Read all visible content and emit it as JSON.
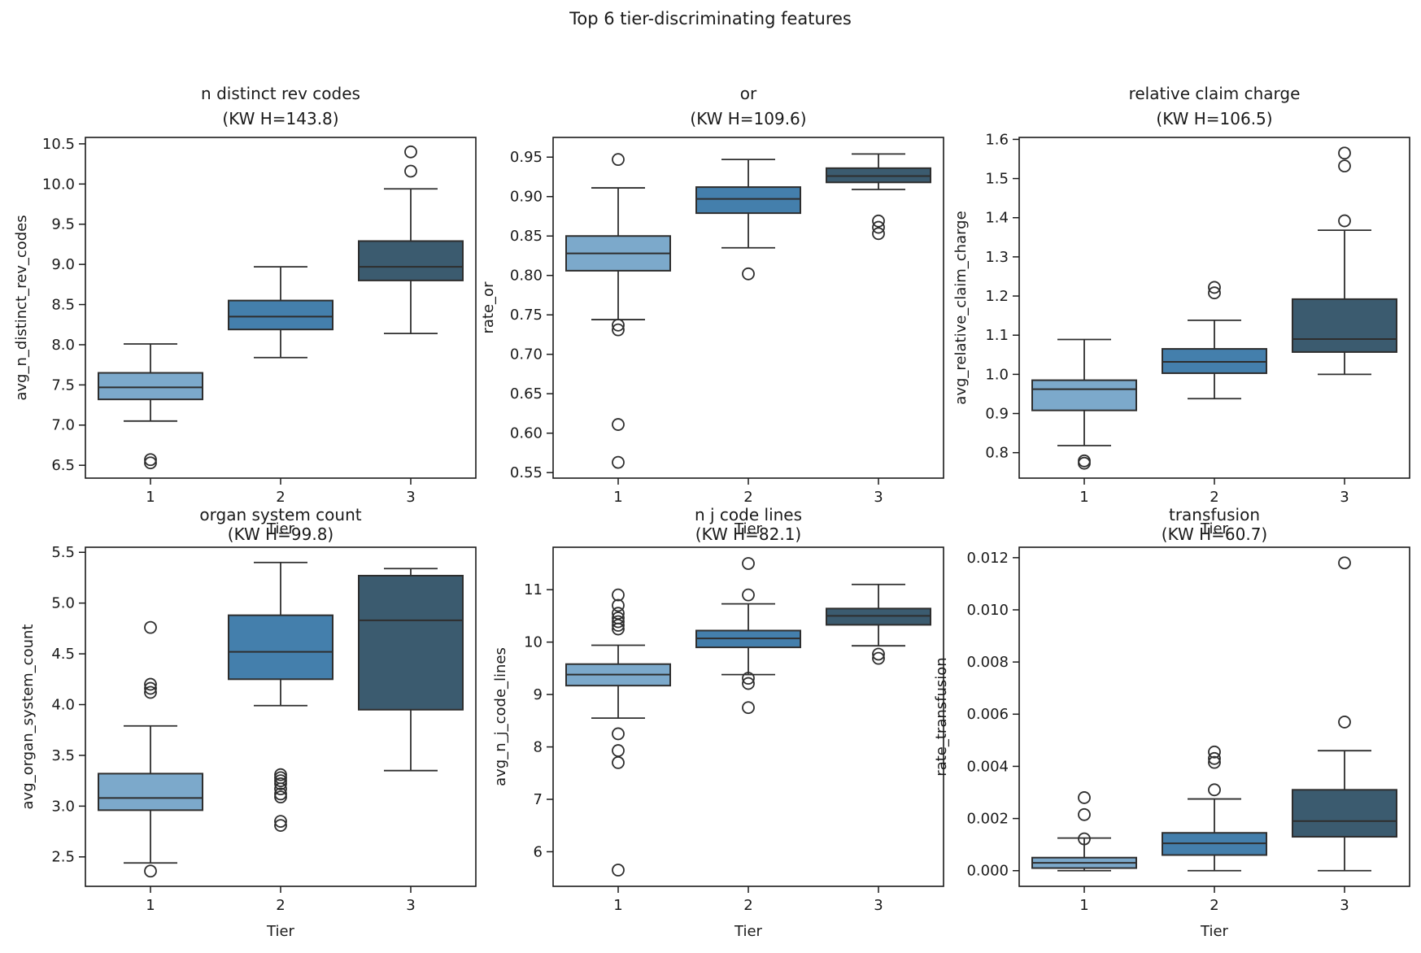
{
  "figure": {
    "suptitle": "Top 6 tier-discriminating features"
  },
  "palette": {
    "tier1_fill": "#7CA9CB",
    "tier2_fill": "#447FAC",
    "tier3_fill": "#3B5B6F",
    "box_line": "#2e2e2e",
    "spine": "#1b1b1b",
    "text": "#1a1a1a",
    "background": "#ffffff"
  },
  "chart_data": [
    {
      "type": "box",
      "title_line1": "n distinct rev codes",
      "title_line2": "(KW H=143.8)",
      "kw_h": 143.8,
      "xlabel": "Tier",
      "ylabel": "avg_n_distinct_rev_codes",
      "categories": [
        "1",
        "2",
        "3"
      ],
      "ylim": [
        6.34,
        10.58
      ],
      "ytick_values": [
        6.5,
        7.0,
        7.5,
        8.0,
        8.5,
        9.0,
        9.5,
        10.0,
        10.5
      ],
      "ytick_labels": [
        "6.5",
        "7.0",
        "7.5",
        "8.0",
        "8.5",
        "9.0",
        "9.5",
        "10.0",
        "10.5"
      ],
      "boxes": [
        {
          "tier": "1",
          "whislo": 7.05,
          "q1": 7.32,
          "med": 7.47,
          "q3": 7.65,
          "whishi": 8.01,
          "outliers": [
            6.57,
            6.53
          ]
        },
        {
          "tier": "2",
          "whislo": 7.84,
          "q1": 8.19,
          "med": 8.35,
          "q3": 8.55,
          "whishi": 8.97,
          "outliers": []
        },
        {
          "tier": "3",
          "whislo": 8.14,
          "q1": 8.8,
          "med": 8.97,
          "q3": 9.29,
          "whishi": 9.94,
          "outliers": [
            10.4,
            10.16
          ]
        }
      ]
    },
    {
      "type": "box",
      "title_line1": "or",
      "title_line2": "(KW H=109.6)",
      "kw_h": 109.6,
      "xlabel": "Tier",
      "ylabel": "rate_or",
      "categories": [
        "1",
        "2",
        "3"
      ],
      "ylim": [
        0.543,
        0.975
      ],
      "ytick_values": [
        0.55,
        0.6,
        0.65,
        0.7,
        0.75,
        0.8,
        0.85,
        0.9,
        0.95
      ],
      "ytick_labels": [
        "0.55",
        "0.60",
        "0.65",
        "0.70",
        "0.75",
        "0.80",
        "0.85",
        "0.90",
        "0.95"
      ],
      "boxes": [
        {
          "tier": "1",
          "whislo": 0.744,
          "q1": 0.806,
          "med": 0.828,
          "q3": 0.85,
          "whishi": 0.911,
          "outliers": [
            0.947,
            0.737,
            0.731,
            0.611,
            0.563
          ]
        },
        {
          "tier": "2",
          "whislo": 0.835,
          "q1": 0.879,
          "med": 0.897,
          "q3": 0.912,
          "whishi": 0.947,
          "outliers": [
            0.802
          ]
        },
        {
          "tier": "3",
          "whislo": 0.909,
          "q1": 0.918,
          "med": 0.926,
          "q3": 0.936,
          "whishi": 0.954,
          "outliers": [
            0.869,
            0.861,
            0.853
          ]
        }
      ]
    },
    {
      "type": "box",
      "title_line1": "relative claim charge",
      "title_line2": "(KW H=106.5)",
      "kw_h": 106.5,
      "xlabel": "Tier",
      "ylabel": "avg_relative_claim_charge",
      "categories": [
        "1",
        "2",
        "3"
      ],
      "ylim": [
        0.735,
        1.605
      ],
      "ytick_values": [
        0.8,
        0.9,
        1.0,
        1.1,
        1.2,
        1.3,
        1.4,
        1.5,
        1.6
      ],
      "ytick_labels": [
        "0.8",
        "0.9",
        "1.0",
        "1.1",
        "1.2",
        "1.3",
        "1.4",
        "1.5",
        "1.6"
      ],
      "boxes": [
        {
          "tier": "1",
          "whislo": 0.818,
          "q1": 0.908,
          "med": 0.962,
          "q3": 0.985,
          "whishi": 1.089,
          "outliers": [
            0.779,
            0.773
          ]
        },
        {
          "tier": "2",
          "whislo": 0.938,
          "q1": 1.003,
          "med": 1.032,
          "q3": 1.065,
          "whishi": 1.138,
          "outliers": [
            1.222,
            1.208
          ]
        },
        {
          "tier": "3",
          "whislo": 1.0,
          "q1": 1.057,
          "med": 1.09,
          "q3": 1.192,
          "whishi": 1.368,
          "outliers": [
            1.565,
            1.532,
            1.392
          ]
        }
      ]
    },
    {
      "type": "box",
      "title_line1": "organ system count",
      "title_line2": "(KW H=99.8)",
      "kw_h": 99.8,
      "xlabel": "Tier",
      "ylabel": "avg_organ_system_count",
      "categories": [
        "1",
        "2",
        "3"
      ],
      "ylim": [
        2.21,
        5.55
      ],
      "ytick_values": [
        2.5,
        3.0,
        3.5,
        4.0,
        4.5,
        5.0,
        5.5
      ],
      "ytick_labels": [
        "2.5",
        "3.0",
        "3.5",
        "4.0",
        "4.5",
        "5.0",
        "5.5"
      ],
      "boxes": [
        {
          "tier": "1",
          "whislo": 2.44,
          "q1": 2.96,
          "med": 3.08,
          "q3": 3.32,
          "whishi": 3.79,
          "outliers": [
            4.76,
            4.2,
            4.16,
            4.12,
            2.36
          ]
        },
        {
          "tier": "2",
          "whislo": 3.99,
          "q1": 4.25,
          "med": 4.52,
          "q3": 4.88,
          "whishi": 5.4,
          "outliers": [
            3.31,
            3.28,
            3.25,
            3.22,
            3.17,
            3.12,
            3.09,
            2.85,
            2.81
          ]
        },
        {
          "tier": "3",
          "whislo": 3.35,
          "q1": 3.95,
          "med": 4.83,
          "q3": 5.27,
          "whishi": 5.34,
          "outliers": []
        }
      ]
    },
    {
      "type": "box",
      "title_line1": "n j code lines",
      "title_line2": "(KW H=82.1)",
      "kw_h": 82.1,
      "xlabel": "Tier",
      "ylabel": "avg_n_j_code_lines",
      "categories": [
        "1",
        "2",
        "3"
      ],
      "ylim": [
        5.34,
        11.81
      ],
      "ytick_values": [
        6,
        7,
        8,
        9,
        10,
        11
      ],
      "ytick_labels": [
        "6",
        "7",
        "8",
        "9",
        "10",
        "11"
      ],
      "boxes": [
        {
          "tier": "1",
          "whislo": 8.55,
          "q1": 9.17,
          "med": 9.38,
          "q3": 9.58,
          "whishi": 9.94,
          "outliers": [
            10.9,
            10.7,
            10.55,
            10.46,
            10.39,
            10.32,
            10.25,
            8.25,
            7.93,
            7.7,
            5.65
          ]
        },
        {
          "tier": "2",
          "whislo": 9.38,
          "q1": 9.9,
          "med": 10.07,
          "q3": 10.22,
          "whishi": 10.73,
          "outliers": [
            11.5,
            10.9,
            9.31,
            9.21,
            8.75
          ]
        },
        {
          "tier": "3",
          "whislo": 9.93,
          "q1": 10.33,
          "med": 10.5,
          "q3": 10.64,
          "whishi": 11.1,
          "outliers": [
            9.77,
            9.69
          ]
        }
      ]
    },
    {
      "type": "box",
      "title_line1": "transfusion",
      "title_line2": "(KW H=60.7)",
      "kw_h": 60.7,
      "xlabel": "Tier",
      "ylabel": "rate_transfusion",
      "categories": [
        "1",
        "2",
        "3"
      ],
      "ylim": [
        -0.0006,
        0.0124
      ],
      "ytick_values": [
        0.0,
        0.002,
        0.004,
        0.006,
        0.008,
        0.01,
        0.012
      ],
      "ytick_labels": [
        "0.000",
        "0.002",
        "0.004",
        "0.006",
        "0.008",
        "0.010",
        "0.012"
      ],
      "boxes": [
        {
          "tier": "1",
          "whislo": 0.0,
          "q1": 0.0001,
          "med": 0.0003,
          "q3": 0.0005,
          "whishi": 0.00125,
          "outliers": [
            0.0028,
            0.00215,
            0.00122
          ]
        },
        {
          "tier": "2",
          "whislo": 0.0,
          "q1": 0.0006,
          "med": 0.00105,
          "q3": 0.00145,
          "whishi": 0.00275,
          "outliers": [
            0.00455,
            0.0043,
            0.00415,
            0.0031
          ]
        },
        {
          "tier": "3",
          "whislo": 0.0,
          "q1": 0.0013,
          "med": 0.0019,
          "q3": 0.0031,
          "whishi": 0.0046,
          "outliers": [
            0.0118,
            0.0057
          ]
        }
      ]
    }
  ]
}
